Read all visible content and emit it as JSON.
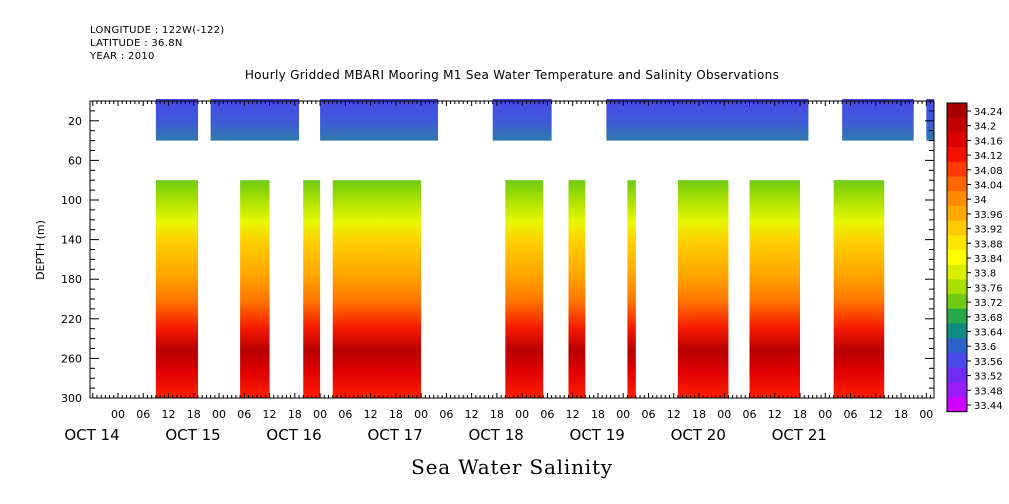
{
  "header": {
    "longitude": "LONGITUDE : 122W(-122)",
    "latitude": "LATITUDE : 36.8N",
    "year": "YEAR : 2010"
  },
  "chart_data": {
    "type": "heatmap",
    "title": "Hourly Gridded MBARI Mooring M1 Sea Water Temperature and Salinity Observations",
    "xlabel": "Sea Water Salinity",
    "ylabel": "DEPTH (m)",
    "ylim": [
      300,
      0
    ],
    "yticks": [
      20,
      60,
      100,
      140,
      180,
      220,
      260,
      300
    ],
    "xlim_hours": [
      0,
      204
    ],
    "hour_ticks": [
      "18",
      "00",
      "06",
      "12",
      "18",
      "00",
      "06",
      "12",
      "18",
      "00",
      "06",
      "12",
      "18",
      "00",
      "06",
      "12",
      "18",
      "00",
      "06",
      "12",
      "18",
      "00",
      "06",
      "12",
      "18",
      "00",
      "06",
      "12",
      "18",
      "00",
      "06",
      "12",
      "18",
      "00",
      "06",
      "12"
    ],
    "day_labels": [
      "OCT 14",
      "OCT 15",
      "OCT 16",
      "OCT 17",
      "OCT 18",
      "OCT 19",
      "OCT 20",
      "OCT 21"
    ],
    "colorbar": {
      "levels": [
        34.24,
        34.2,
        34.16,
        34.12,
        34.08,
        34.04,
        34,
        33.96,
        33.92,
        33.88,
        33.84,
        33.8,
        33.76,
        33.72,
        33.68,
        33.64,
        33.6,
        33.56,
        33.52,
        33.48,
        33.44
      ],
      "colors": [
        "#a80000",
        "#c30000",
        "#de0000",
        "#f51000",
        "#fd3a00",
        "#ff6600",
        "#ff8c00",
        "#ffaa00",
        "#ffc800",
        "#ffe600",
        "#fdff00",
        "#d8f000",
        "#a8e000",
        "#6fca14",
        "#28a84a",
        "#118a80",
        "#2e62c8",
        "#4848e8",
        "#6e2cf4",
        "#9a1cf8",
        "#cc00ff"
      ]
    },
    "surface_layer": {
      "depth_range": [
        2,
        40
      ],
      "value_range": [
        33.52,
        33.64
      ],
      "gaps_hours": [
        [
          0,
          9
        ],
        [
          19,
          22
        ],
        [
          43,
          48
        ],
        [
          76,
          89
        ],
        [
          103,
          116
        ],
        [
          164,
          172
        ],
        [
          189,
          192
        ],
        [
          194,
          197
        ]
      ]
    },
    "deep_layer": {
      "depth_range": [
        80,
        300
      ],
      "value_at_100m": 33.82,
      "value_at_250m": 34.2,
      "value_at_300m": 34.12,
      "data_segments_hours": [
        [
          9,
          19
        ],
        [
          29,
          36
        ],
        [
          44,
          48
        ],
        [
          51,
          72
        ],
        [
          92,
          101
        ],
        [
          107,
          111
        ],
        [
          121,
          123
        ],
        [
          133,
          145
        ],
        [
          150,
          162
        ],
        [
          170,
          182
        ],
        [
          196,
          198
        ],
        [
          205,
          208
        ]
      ]
    }
  }
}
